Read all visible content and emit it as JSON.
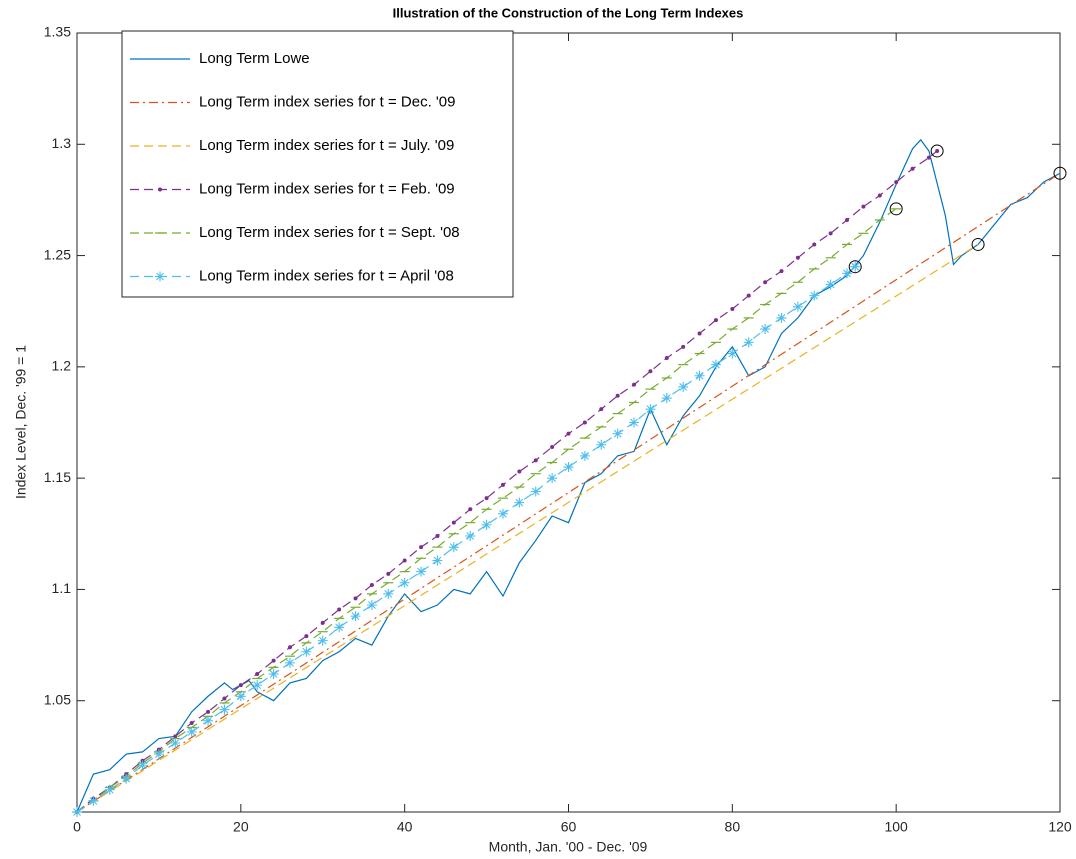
{
  "chart_data": {
    "type": "line",
    "title": "Illustration of the Construction of the Long Term Indexes",
    "xlabel": "Month, Jan. '00 - Dec. '09",
    "ylabel": "Index Level, Dec. '99 = 1",
    "xlim": [
      0,
      120
    ],
    "xticks": [
      0,
      20,
      40,
      60,
      80,
      100,
      120
    ],
    "ylim": [
      1,
      1.35
    ],
    "yticks": [
      1.05,
      1.1,
      1.15,
      1.2,
      1.25,
      1.3,
      1.35
    ],
    "legend": "upper left",
    "series": [
      {
        "name": "Long Term Lowe",
        "color": "#0072BD",
        "linestyle": "solid",
        "marker": "none",
        "end_circle": false,
        "x": [
          0,
          2,
          4,
          6,
          8,
          10,
          12,
          14,
          16,
          18,
          19,
          21,
          22,
          24,
          26,
          28,
          30,
          32,
          34,
          36,
          38,
          40,
          42,
          44,
          46,
          48,
          50,
          52,
          54,
          56,
          58,
          60,
          62,
          64,
          66,
          68,
          70,
          72,
          74,
          76,
          78,
          80,
          82,
          84,
          86,
          88,
          90,
          92,
          94,
          96,
          98,
          100,
          102,
          103,
          104,
          106,
          107,
          108,
          110,
          112,
          114,
          116,
          118,
          120
        ],
        "values": [
          1.0,
          1.017,
          1.019,
          1.026,
          1.027,
          1.033,
          1.034,
          1.045,
          1.052,
          1.058,
          1.055,
          1.059,
          1.054,
          1.05,
          1.058,
          1.06,
          1.068,
          1.072,
          1.078,
          1.075,
          1.088,
          1.098,
          1.09,
          1.093,
          1.1,
          1.098,
          1.108,
          1.097,
          1.112,
          1.122,
          1.133,
          1.13,
          1.148,
          1.152,
          1.16,
          1.162,
          1.181,
          1.165,
          1.178,
          1.187,
          1.2,
          1.209,
          1.196,
          1.2,
          1.215,
          1.222,
          1.232,
          1.236,
          1.241,
          1.25,
          1.265,
          1.282,
          1.298,
          1.302,
          1.297,
          1.268,
          1.246,
          1.25,
          1.255,
          1.264,
          1.273,
          1.276,
          1.283,
          1.287
        ]
      },
      {
        "name": "Long Term index series for t = Dec. '09",
        "color": "#D95319",
        "linestyle": "dashdot",
        "marker": "none",
        "end_circle": true,
        "x": [
          0,
          120
        ],
        "values": [
          1.0,
          1.287
        ]
      },
      {
        "name": "Long Term index series for t = July. '09",
        "color": "#EDB120",
        "linestyle": "dashed",
        "marker": "none",
        "end_circle": true,
        "x": [
          0,
          110
        ],
        "values": [
          1.0,
          1.255
        ]
      },
      {
        "name": "Long Term index series for t = Feb. '09",
        "color": "#7E2F8E",
        "linestyle": "dashed",
        "marker": "dot",
        "end_circle": true,
        "x": [
          0,
          2,
          4,
          6,
          8,
          10,
          12,
          14,
          16,
          18,
          20,
          22,
          24,
          26,
          28,
          30,
          32,
          34,
          36,
          38,
          40,
          42,
          44,
          46,
          48,
          50,
          52,
          54,
          56,
          58,
          60,
          62,
          64,
          66,
          68,
          70,
          72,
          74,
          76,
          78,
          80,
          82,
          84,
          86,
          88,
          90,
          92,
          94,
          96,
          98,
          100,
          102,
          104,
          105
        ],
        "values": [
          1.0,
          1.006,
          1.011,
          1.017,
          1.023,
          1.028,
          1.034,
          1.04,
          1.045,
          1.051,
          1.057,
          1.062,
          1.068,
          1.074,
          1.079,
          1.085,
          1.091,
          1.096,
          1.102,
          1.107,
          1.113,
          1.119,
          1.124,
          1.13,
          1.136,
          1.141,
          1.147,
          1.153,
          1.158,
          1.164,
          1.17,
          1.175,
          1.181,
          1.187,
          1.192,
          1.198,
          1.204,
          1.209,
          1.215,
          1.221,
          1.226,
          1.232,
          1.238,
          1.243,
          1.249,
          1.255,
          1.26,
          1.266,
          1.272,
          1.277,
          1.283,
          1.289,
          1.294,
          1.297
        ]
      },
      {
        "name": "Long Term index series for t = Sept. '08",
        "color": "#77AC30",
        "linestyle": "dashed",
        "marker": "hline",
        "end_circle": true,
        "x": [
          0,
          2,
          4,
          6,
          8,
          10,
          12,
          14,
          16,
          18,
          20,
          22,
          24,
          26,
          28,
          30,
          32,
          34,
          36,
          38,
          40,
          42,
          44,
          46,
          48,
          50,
          52,
          54,
          56,
          58,
          60,
          62,
          64,
          66,
          68,
          70,
          72,
          74,
          76,
          78,
          80,
          82,
          84,
          86,
          88,
          90,
          92,
          94,
          96,
          98,
          100
        ],
        "values": [
          1.0,
          1.005,
          1.011,
          1.016,
          1.022,
          1.027,
          1.033,
          1.038,
          1.043,
          1.049,
          1.054,
          1.06,
          1.065,
          1.07,
          1.076,
          1.081,
          1.087,
          1.092,
          1.098,
          1.103,
          1.108,
          1.114,
          1.119,
          1.125,
          1.13,
          1.136,
          1.141,
          1.146,
          1.152,
          1.157,
          1.163,
          1.168,
          1.173,
          1.179,
          1.184,
          1.19,
          1.195,
          1.201,
          1.206,
          1.211,
          1.217,
          1.222,
          1.228,
          1.233,
          1.238,
          1.244,
          1.249,
          1.255,
          1.26,
          1.266,
          1.271
        ]
      },
      {
        "name": "Long Term index series for t = April '08",
        "color": "#4DBEEE",
        "linestyle": "dashed",
        "marker": "asterisk",
        "end_circle": true,
        "x": [
          0,
          2,
          4,
          6,
          8,
          10,
          12,
          14,
          16,
          18,
          20,
          22,
          24,
          26,
          28,
          30,
          32,
          34,
          36,
          38,
          40,
          42,
          44,
          46,
          48,
          50,
          52,
          54,
          56,
          58,
          60,
          62,
          64,
          66,
          68,
          70,
          72,
          74,
          76,
          78,
          80,
          82,
          84,
          86,
          88,
          90,
          92,
          94,
          95
        ],
        "values": [
          1.0,
          1.005,
          1.01,
          1.015,
          1.021,
          1.026,
          1.031,
          1.036,
          1.041,
          1.046,
          1.052,
          1.057,
          1.062,
          1.067,
          1.072,
          1.077,
          1.083,
          1.088,
          1.093,
          1.098,
          1.103,
          1.108,
          1.113,
          1.119,
          1.124,
          1.129,
          1.134,
          1.139,
          1.144,
          1.15,
          1.155,
          1.16,
          1.165,
          1.17,
          1.175,
          1.181,
          1.186,
          1.191,
          1.196,
          1.201,
          1.206,
          1.211,
          1.217,
          1.222,
          1.227,
          1.232,
          1.237,
          1.242,
          1.245
        ]
      }
    ]
  }
}
